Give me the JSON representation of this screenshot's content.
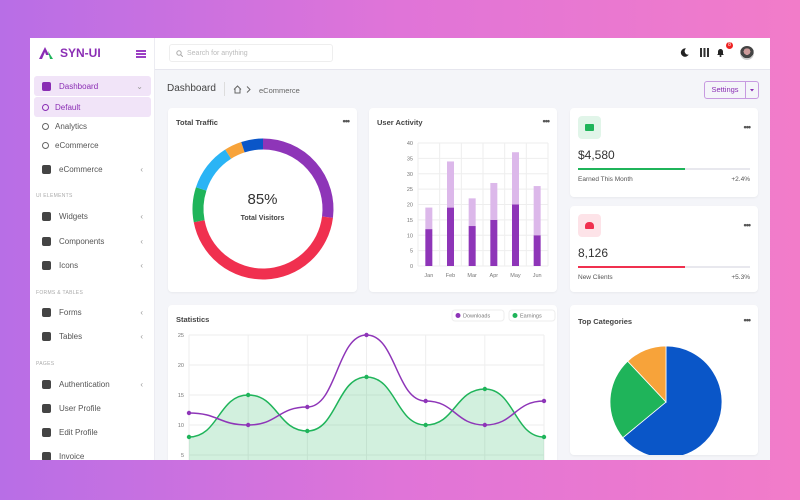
{
  "brand": {
    "name": "SYN-UI"
  },
  "sidebar": {
    "items": [
      {
        "label": "Dashboard",
        "type": "parent",
        "active": true
      },
      {
        "label": "Default",
        "type": "sub",
        "active": true
      },
      {
        "label": "Analytics",
        "type": "sub"
      },
      {
        "label": "eCommerce",
        "type": "sub"
      },
      {
        "label": "eCommerce",
        "type": "parent"
      },
      {
        "label": "Widgets",
        "type": "parent"
      },
      {
        "label": "Components",
        "type": "parent"
      },
      {
        "label": "Icons",
        "type": "parent"
      },
      {
        "label": "Forms",
        "type": "parent"
      },
      {
        "label": "Tables",
        "type": "parent"
      },
      {
        "label": "Authentication",
        "type": "parent"
      },
      {
        "label": "User Profile",
        "type": "leaf"
      },
      {
        "label": "Edit Profile",
        "type": "leaf"
      },
      {
        "label": "Invoice",
        "type": "leaf"
      }
    ],
    "sections": [
      "UI ELEMENTS",
      "FORMS & TABLES",
      "PAGES"
    ]
  },
  "topbar": {
    "search_placeholder": "Search for anything",
    "notification_count": "8",
    "icons": [
      "moon-icon",
      "apps-grid-icon",
      "bell-icon",
      "avatar"
    ]
  },
  "page": {
    "title": "Dashboard",
    "breadcrumb": "eCommerce",
    "settings_label": "Settings"
  },
  "total_traffic": {
    "title": "Total Traffic",
    "value": "85%",
    "label": "Total Visitors"
  },
  "stats": [
    {
      "value": "$4,580",
      "label": "Earned This Month",
      "change": "+2.4%",
      "progress": 62,
      "color": "#1fb45a",
      "icon": "wallet-icon"
    },
    {
      "value": "8,126",
      "label": "New Clients",
      "change": "+5.3%",
      "progress": 62,
      "color": "#f0304f",
      "icon": "users-icon"
    }
  ],
  "chart_data": [
    {
      "type": "pie",
      "title": "Total Traffic",
      "donut": true,
      "values": [
        27,
        45,
        8,
        11,
        4,
        5
      ],
      "colors": [
        "#8e35b8",
        "#f0304f",
        "#1fb45a",
        "#2ab4f5",
        "#f7a33a",
        "#0a56c8"
      ]
    },
    {
      "type": "bar",
      "stacked": true,
      "title": "User Activity",
      "categories": [
        "Jan",
        "Feb",
        "Mar",
        "Apr",
        "May",
        "Jun"
      ],
      "series": [
        {
          "values": [
            12,
            19,
            13,
            15,
            20,
            10
          ],
          "color": "#8e35b8"
        },
        {
          "values": [
            7,
            15,
            9,
            12,
            17,
            16
          ],
          "color": "#dcb8ea"
        }
      ],
      "ylim": [
        0,
        40
      ],
      "yticks": [
        0,
        5,
        10,
        15,
        20,
        25,
        30,
        35,
        40
      ],
      "grid": true
    },
    {
      "type": "line",
      "title": "Statistics",
      "x": [
        1,
        2,
        3,
        4,
        5,
        6,
        7
      ],
      "series": [
        {
          "name": "Downloads",
          "values": [
            12,
            10,
            13,
            25,
            14,
            10,
            14
          ],
          "color": "#8e35b8"
        },
        {
          "name": "Earnings",
          "values": [
            8,
            15,
            9,
            18,
            10,
            16,
            8
          ],
          "color": "#1fb45a",
          "area": true
        }
      ],
      "yticks": [
        5,
        10,
        15,
        20,
        25
      ],
      "ylim": [
        5,
        25
      ],
      "legend": "top-right",
      "grid": true
    },
    {
      "type": "pie",
      "title": "Top Categories",
      "values": [
        64,
        24,
        12
      ],
      "colors": [
        "#0a56c8",
        "#1fb45a",
        "#f7a33a"
      ]
    }
  ]
}
